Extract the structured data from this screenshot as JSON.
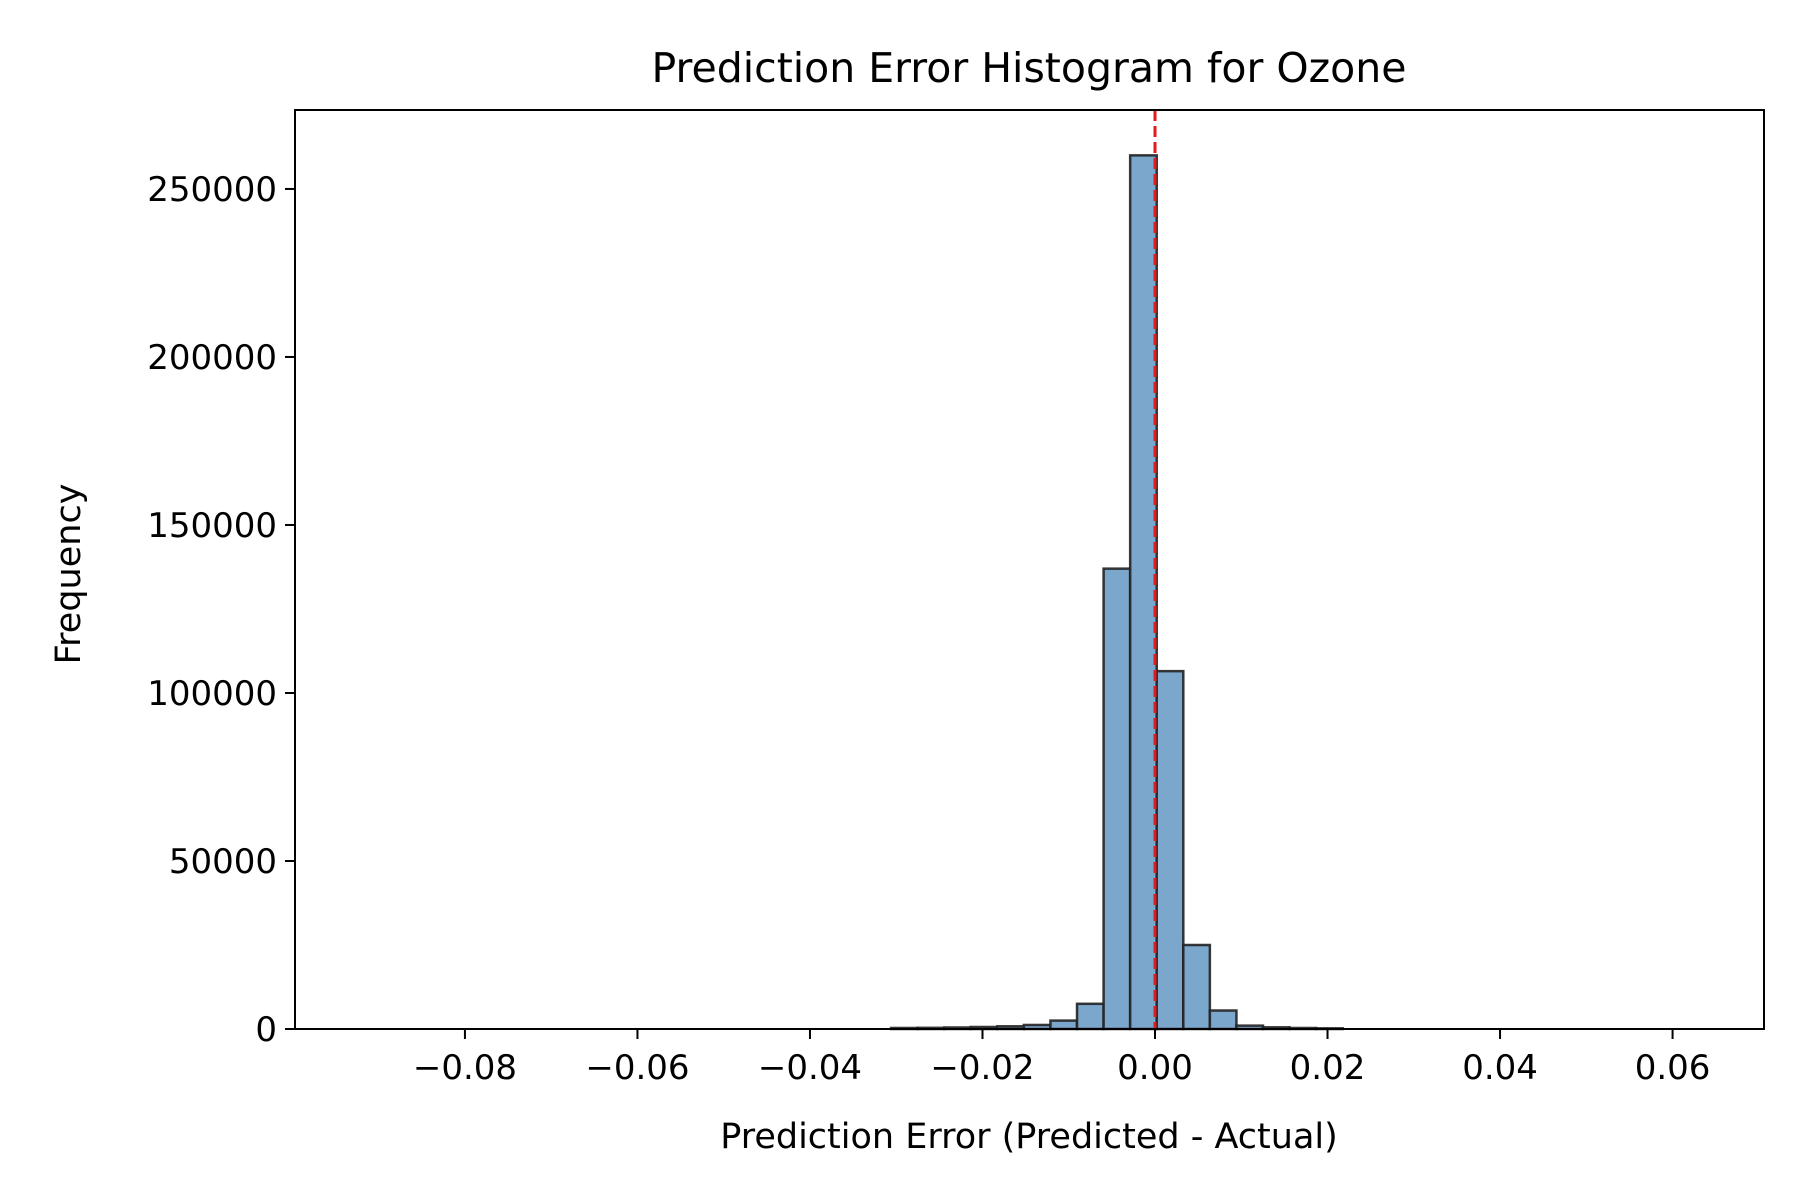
{
  "chart_data": {
    "type": "bar",
    "title": "Prediction Error Histogram for Ozone",
    "xlabel": "Prediction Error (Predicted - Actual)",
    "ylabel": "Frequency",
    "xlim": [
      -0.0997,
      0.0706
    ],
    "ylim": [
      0,
      273500
    ],
    "x_ticks": [
      -0.08,
      -0.06,
      -0.04,
      -0.02,
      0.0,
      0.02,
      0.04,
      0.06
    ],
    "x_tick_labels": [
      "−0.08",
      "−0.06",
      "−0.04",
      "−0.02",
      "0.00",
      "0.02",
      "0.04",
      "0.06"
    ],
    "y_ticks": [
      0,
      50000,
      100000,
      150000,
      200000,
      250000
    ],
    "y_tick_labels": [
      "0",
      "50000",
      "100000",
      "150000",
      "200000",
      "250000"
    ],
    "bin_start": -0.0922,
    "bin_width": 0.00308,
    "values": [
      0,
      0,
      0,
      0,
      0,
      0,
      0,
      0,
      0,
      0,
      0,
      0,
      0,
      0,
      0,
      0,
      0,
      0,
      0,
      0,
      300,
      350,
      450,
      600,
      800,
      1200,
      2500,
      7500,
      137000,
      260000,
      106500,
      25000,
      5500,
      1000,
      500,
      300,
      200,
      0,
      0,
      0,
      0,
      0,
      0,
      0,
      0,
      0,
      0,
      0,
      0,
      0
    ],
    "reference_line": {
      "x": 0.0,
      "color": "#e41a1c",
      "style": "dashed"
    },
    "bar_fill": "#7ba7cd",
    "bar_edge": "#222222",
    "grid": false,
    "legend": "none"
  }
}
